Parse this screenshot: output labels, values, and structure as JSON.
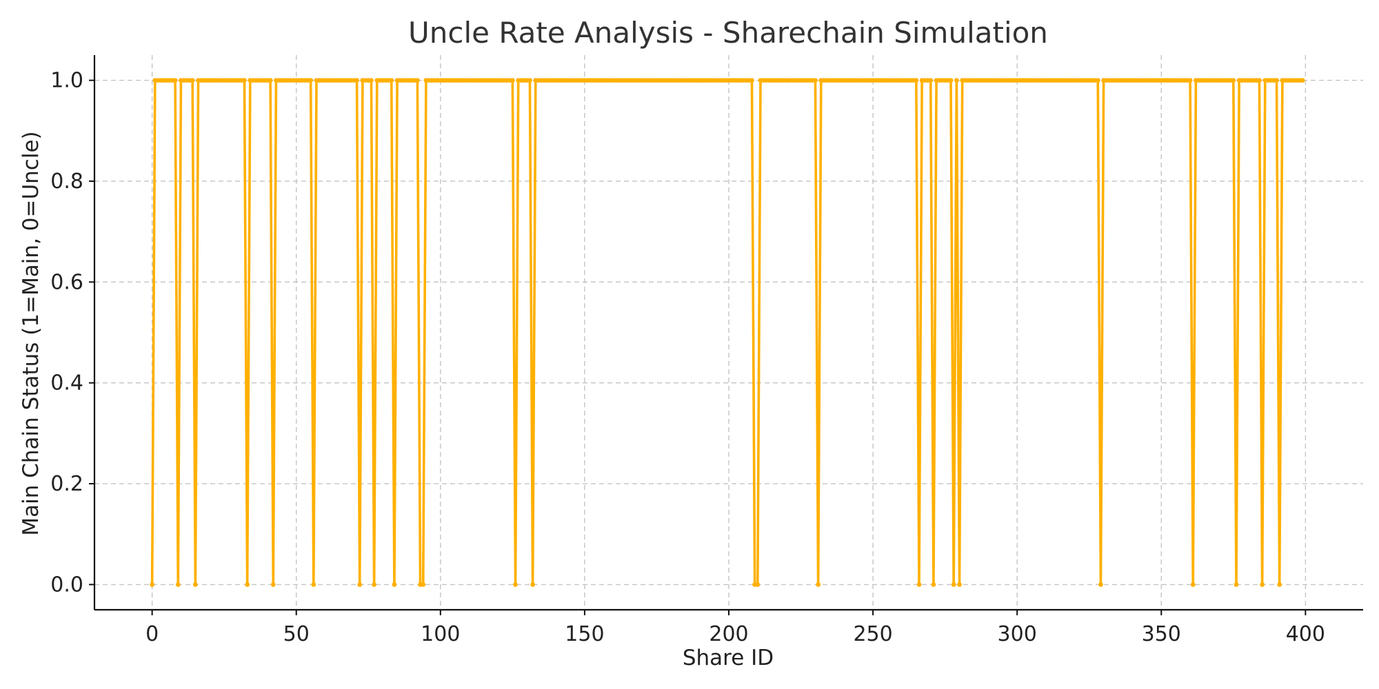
{
  "chart_data": {
    "type": "line",
    "title": "Uncle Rate Analysis - Sharechain Simulation",
    "xlabel": "Share ID",
    "ylabel": "Main Chain Status (1=Main, 0=Uncle)",
    "xlim": [
      -20,
      420
    ],
    "ylim": [
      -0.05,
      1.05
    ],
    "xticks": [
      0,
      50,
      100,
      150,
      200,
      250,
      300,
      350,
      400
    ],
    "xtick_labels": [
      "0",
      "50",
      "100",
      "150",
      "200",
      "250",
      "300",
      "350",
      "400"
    ],
    "yticks": [
      0.0,
      0.2,
      0.4,
      0.6,
      0.8,
      1.0
    ],
    "ytick_labels": [
      "0.0",
      "0.2",
      "0.4",
      "0.6",
      "0.8",
      "1.0"
    ],
    "grid": true,
    "x_range": [
      0,
      399
    ],
    "uncle_share_ids": [
      0,
      9,
      15,
      33,
      42,
      56,
      72,
      77,
      84,
      93,
      94,
      126,
      132,
      209,
      210,
      231,
      266,
      271,
      278,
      280,
      329,
      361,
      376,
      385,
      391
    ],
    "series": [
      {
        "color": "#FFB000",
        "marker": "circle",
        "default_value": 1
      }
    ]
  }
}
